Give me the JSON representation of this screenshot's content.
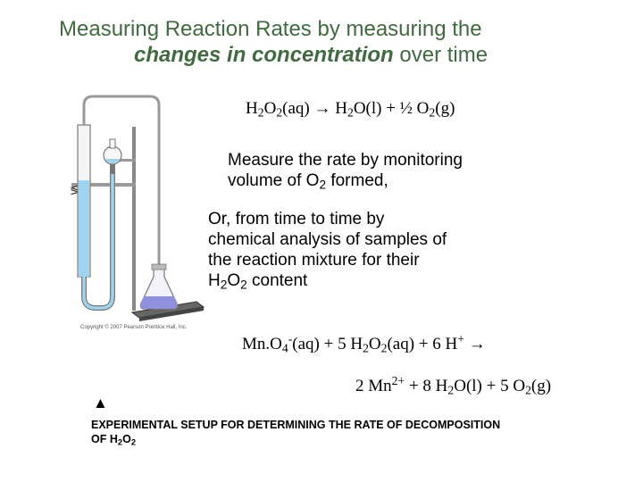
{
  "title": {
    "line1": "Measuring Reaction Rates by measuring the",
    "line2_emphasis": "changes in concentration",
    "line2_rest": " over time"
  },
  "equation1": {
    "a": "H",
    "a_sub": "2",
    "b": "O",
    "b_sub": "2",
    "c": "(aq) → H",
    "c_sub": "2",
    "d": "O(l) + ½ O",
    "d_sub": "2",
    "e": "(g)"
  },
  "text1": {
    "line1": "Measure the rate by monitoring",
    "line2a": "volume of O",
    "line2_sub": "2",
    "line2b": " formed,"
  },
  "text2": {
    "line1": "Or, from time to time by",
    "line2": "chemical analysis of samples of",
    "line3": "the reaction mixture for their",
    "line4a": "H",
    "line4_sub1": "2",
    "line4b": "O",
    "line4_sub2": "2",
    "line4c": " content"
  },
  "equation2": {
    "a": "Mn.O",
    "a_sub": "4",
    "a_sup": "-",
    "b": "(aq) +  5 H",
    "b_sub1": "2",
    "b2": "O",
    "b_sub2": "2",
    "c": "(aq) + 6 H",
    "c_sup": "+",
    "d": " →"
  },
  "equation3": {
    "a": "2 Mn",
    "a_sup": "2+",
    "b": " + 8 H",
    "b_sub": "2",
    "c": "O(l) + 5 O",
    "c_sub": "2",
    "d": "(g)"
  },
  "arrow_glyph": "▲",
  "caption": {
    "line1": "EXPERIMENTAL SETUP FOR DETERMINING THE RATE OF DECOMPOSITION",
    "line2a": "OF H",
    "sub1": "2",
    "line2b": "O",
    "sub2": "2"
  },
  "image_copyright": "Copyright © 2007 Pearson Prentice Hall, Inc.",
  "colors": {
    "title": "#3f6b3f",
    "liquid": "#9fd3ef",
    "flask_liquid": "#8f8fe0",
    "glass": "#7a7a7a"
  }
}
